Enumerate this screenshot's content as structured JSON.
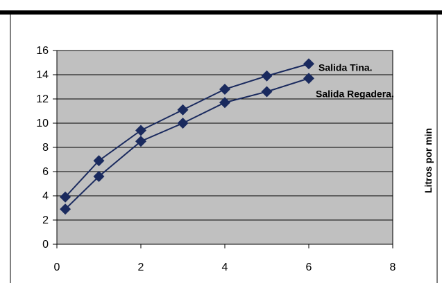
{
  "chart_data": {
    "type": "line",
    "xlim": [
      0,
      8
    ],
    "ylim": [
      0,
      16
    ],
    "x_ticks": [
      "0",
      "2",
      "4",
      "6",
      "8"
    ],
    "y_ticks": [
      "0",
      "2",
      "4",
      "6",
      "8",
      "10",
      "12",
      "14",
      "16"
    ],
    "ylabel": "Litros por min",
    "grid": true,
    "plot_background": "#c0c0c0",
    "line_color": "#1a2a5e",
    "marker": "diamond",
    "series": [
      {
        "name": "Salida Tina.",
        "x": [
          0.2,
          1,
          2,
          3,
          4,
          5,
          6
        ],
        "y": [
          3.9,
          6.9,
          9.4,
          11.1,
          12.8,
          13.9,
          14.9
        ]
      },
      {
        "name": "Salida Regadera.",
        "x": [
          0.2,
          1,
          2,
          3,
          4,
          5,
          6
        ],
        "y": [
          2.9,
          5.6,
          8.5,
          10.0,
          11.7,
          12.6,
          13.7
        ]
      }
    ]
  }
}
